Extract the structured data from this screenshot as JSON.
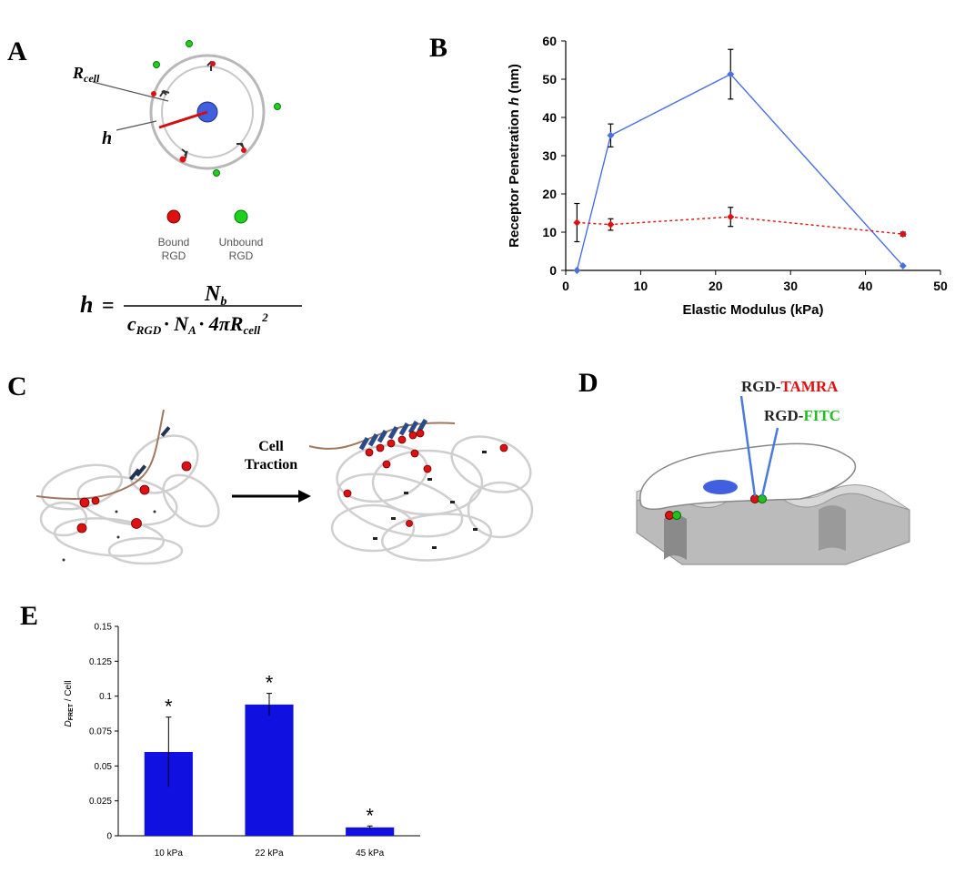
{
  "panels": {
    "A": {
      "letter": "A",
      "r_cell_label": "R",
      "r_cell_sub": "cell",
      "h_label": "h",
      "legend": [
        {
          "line1": "Bound",
          "line2": "RGD",
          "color": "#e01010"
        },
        {
          "line1": "Unbound",
          "line2": "RGD",
          "color": "#20d020"
        }
      ],
      "formula": {
        "lhs": "h",
        "eq": "=",
        "numerator": "N",
        "numerator_sub": "b",
        "den_c": "c",
        "den_c_sub": "RGD",
        "den_rest": "· N",
        "den_na_sub": "A",
        "den_pi": "· 4πR",
        "den_r_sub": "cell",
        "den_sup": "2"
      },
      "colors": {
        "cell": "#4060e0",
        "radius": "#d01010"
      }
    },
    "B": {
      "letter": "B"
    },
    "C": {
      "letter": "C",
      "arrow_label_1": "Cell",
      "arrow_label_2": "Traction"
    },
    "D": {
      "letter": "D",
      "label_1_prefix": "RGD-",
      "label_1_dye": "TAMRA",
      "label_2_prefix": "RGD-",
      "label_2_dye": "FITC",
      "colors": {
        "tamra": "#e01010",
        "fitc": "#20c020"
      }
    },
    "E": {
      "letter": "E"
    }
  },
  "chart_data": [
    {
      "type": "line",
      "title": "",
      "xlabel": "Elastic Modulus (kPa)",
      "ylabel_prefix": "Receptor Penetration ",
      "ylabel_var": "h",
      "ylabel_suffix": " (nm)",
      "xlim": [
        0,
        50
      ],
      "ylim": [
        0,
        60
      ],
      "xticks": [
        0,
        10,
        20,
        30,
        40,
        50
      ],
      "yticks": [
        0,
        10,
        20,
        30,
        40,
        50,
        60
      ],
      "grid": false,
      "series": [
        {
          "color": "#4a6fe3",
          "style": "solid",
          "x": [
            1.5,
            6,
            22,
            45
          ],
          "y": [
            0,
            35.3,
            51.3,
            1.2
          ],
          "err": [
            0,
            3,
            6.5,
            0
          ]
        },
        {
          "color": "#e01010",
          "style": "dotted",
          "x": [
            1.5,
            6,
            22,
            45
          ],
          "y": [
            12.5,
            12,
            14,
            9.5
          ],
          "err": [
            5,
            1.5,
            2.5,
            0.5
          ]
        }
      ]
    },
    {
      "type": "bar",
      "title": "",
      "ylabel_main": "D",
      "ylabel_sub": "FRET",
      "ylabel_suffix": " / Cell",
      "categories": [
        "10 kPa",
        "22 kPa",
        "45 kPa"
      ],
      "values": [
        0.06,
        0.094,
        0.006
      ],
      "errors": [
        0.025,
        0.008,
        0.001
      ],
      "annotations": [
        "*",
        "*",
        "*"
      ],
      "ylim": [
        0,
        0.15
      ],
      "yticks": [
        "0",
        "0.025",
        "0.05",
        "0.075",
        "0.1",
        "0.125",
        "0.15"
      ],
      "ytick_values": [
        0,
        0.025,
        0.05,
        0.075,
        0.1,
        0.125,
        0.15
      ],
      "color": "#1010e0"
    }
  ]
}
